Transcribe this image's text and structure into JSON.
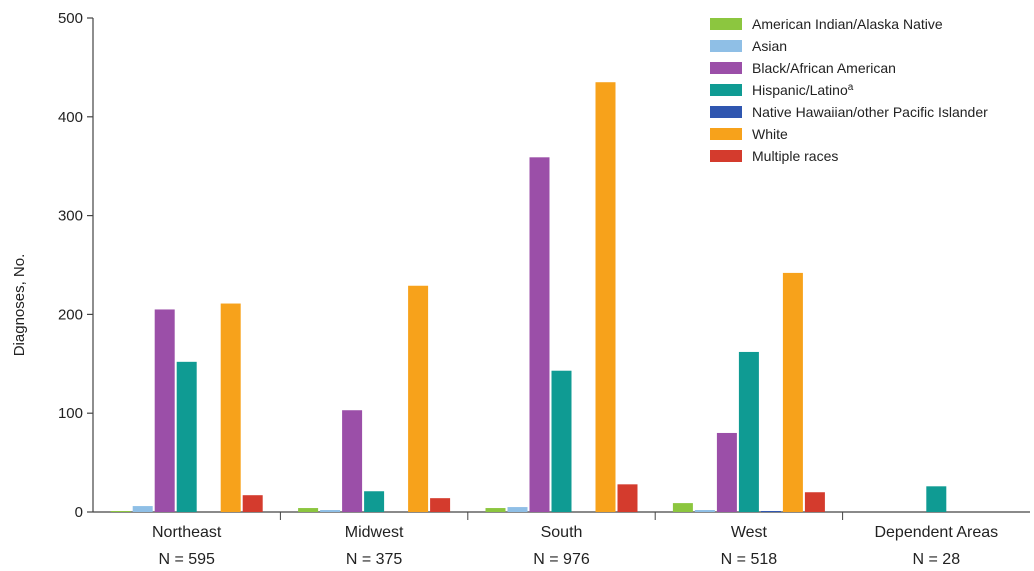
{
  "chart_data": {
    "type": "bar",
    "ylabel": "Diagnoses, No.",
    "ylim": [
      0,
      500
    ],
    "yticks": [
      0,
      100,
      200,
      300,
      400,
      500
    ],
    "categories": [
      "Northeast",
      "Midwest",
      "South",
      "West",
      "Dependent Areas"
    ],
    "category_totals": [
      "N = 595",
      "N = 375",
      "N = 976",
      "N = 518",
      "N = 28"
    ],
    "legend_position": "top-right",
    "grid": false,
    "series": [
      {
        "name": "American Indian/Alaska Native",
        "color": "#8cc63f",
        "values": [
          1,
          4,
          4,
          9,
          0
        ]
      },
      {
        "name": "Asian",
        "color": "#8fbfe6",
        "values": [
          6,
          2,
          5,
          2,
          0
        ]
      },
      {
        "name": "Black/African American",
        "color": "#9b4fa8",
        "values": [
          205,
          103,
          359,
          80,
          0
        ]
      },
      {
        "name": "Hispanic/Latino",
        "name_superscript": "a",
        "color": "#0f9b93",
        "values": [
          152,
          21,
          143,
          162,
          26
        ]
      },
      {
        "name": "Native Hawaiian/other Pacific Islander",
        "color": "#2f56b0",
        "values": [
          0,
          0,
          0,
          1,
          0
        ]
      },
      {
        "name": "White",
        "color": "#f7a21b",
        "values": [
          211,
          229,
          435,
          242,
          0
        ]
      },
      {
        "name": "Multiple races",
        "color": "#d43b2d",
        "values": [
          17,
          14,
          28,
          20,
          0
        ]
      }
    ]
  }
}
